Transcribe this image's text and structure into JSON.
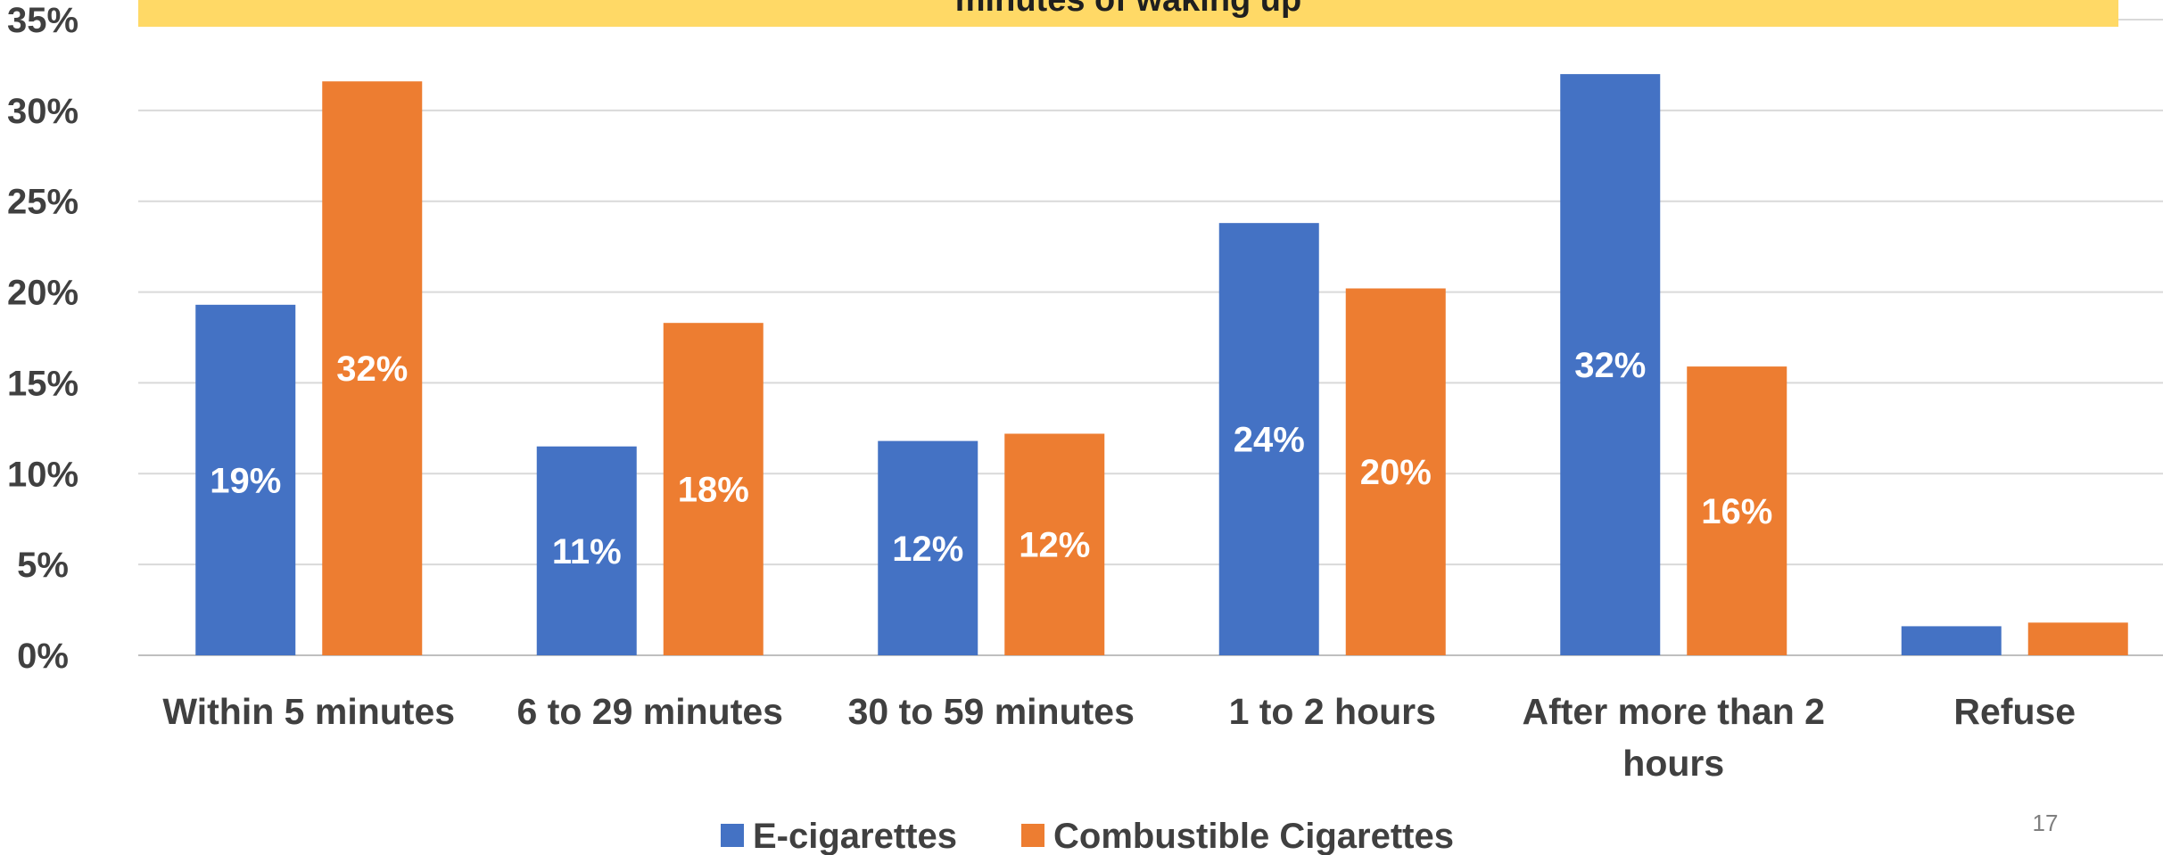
{
  "chart_data": {
    "type": "bar",
    "title": "minutes of waking up",
    "xlabel": "",
    "ylabel": "",
    "ylim": [
      0,
      35
    ],
    "yticks": [
      "0%",
      "5%",
      "10%",
      "15%",
      "20%",
      "25%",
      "30%",
      "35%"
    ],
    "ytick_values": [
      0,
      5,
      10,
      15,
      20,
      25,
      30,
      35
    ],
    "grid": true,
    "legend": "bottom-center",
    "categories": [
      [
        "Within 5 minutes"
      ],
      [
        "6 to 29 minutes"
      ],
      [
        "30 to 59 minutes"
      ],
      [
        "1 to 2 hours"
      ],
      [
        "After more than 2",
        "hours"
      ],
      [
        "Refuse"
      ]
    ],
    "series": [
      {
        "name": "E-cigarettes",
        "color": "#4472C4",
        "values": [
          19.3,
          11.5,
          11.8,
          23.8,
          32.0,
          1.6
        ],
        "labels": [
          "19%",
          "11%",
          "12%",
          "24%",
          "32%",
          ""
        ]
      },
      {
        "name": "Combustible Cigarettes",
        "color": "#ED7D31",
        "values": [
          31.6,
          18.3,
          12.2,
          20.2,
          15.9,
          1.8
        ],
        "labels": [
          "32%",
          "18%",
          "12%",
          "20%",
          "16%",
          ""
        ]
      }
    ],
    "banner_color": "#FFD966"
  },
  "page_number": "17"
}
